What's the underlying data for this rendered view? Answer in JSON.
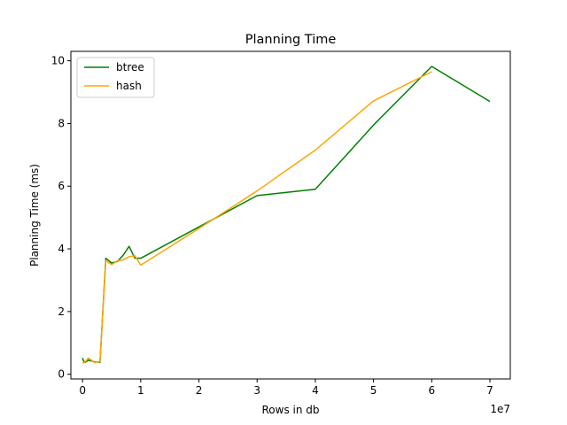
{
  "chart_data": {
    "type": "line",
    "title": "Planning Time",
    "xlabel": "Rows in db",
    "ylabel": "Planning Time (ms)",
    "x_offset_label": "1e7",
    "xlim": [
      -0.2,
      7.35
    ],
    "ylim": [
      -0.15,
      10.3
    ],
    "x_ticks": [
      0,
      1,
      2,
      3,
      4,
      5,
      6,
      7
    ],
    "y_ticks": [
      0,
      2,
      4,
      6,
      8,
      10
    ],
    "grid": false,
    "legend_position": "top-left",
    "series": [
      {
        "name": "btree",
        "color": "#008000",
        "x": [
          0,
          0.02,
          0.05,
          0.1,
          0.2,
          0.3,
          0.4,
          0.5,
          0.6,
          0.7,
          0.8,
          0.9,
          1.0,
          2.0,
          3.0,
          4.0,
          5.0,
          6.0,
          7.0
        ],
        "y": [
          0.52,
          0.42,
          0.38,
          0.45,
          0.4,
          0.38,
          3.7,
          3.55,
          3.6,
          3.8,
          4.08,
          3.7,
          3.7,
          4.7,
          5.7,
          5.9,
          7.95,
          9.82,
          8.7
        ]
      },
      {
        "name": "hash",
        "color": "#ffa500",
        "x": [
          0,
          0.02,
          0.05,
          0.1,
          0.2,
          0.3,
          0.4,
          0.5,
          0.6,
          0.7,
          0.8,
          0.9,
          1.0,
          2.0,
          3.0,
          4.0,
          5.0,
          6.0
        ],
        "y": [
          0.38,
          0.36,
          0.4,
          0.52,
          0.38,
          0.4,
          3.62,
          3.5,
          3.62,
          3.65,
          3.75,
          3.78,
          3.48,
          4.65,
          5.85,
          7.15,
          8.72,
          9.65
        ]
      }
    ]
  }
}
